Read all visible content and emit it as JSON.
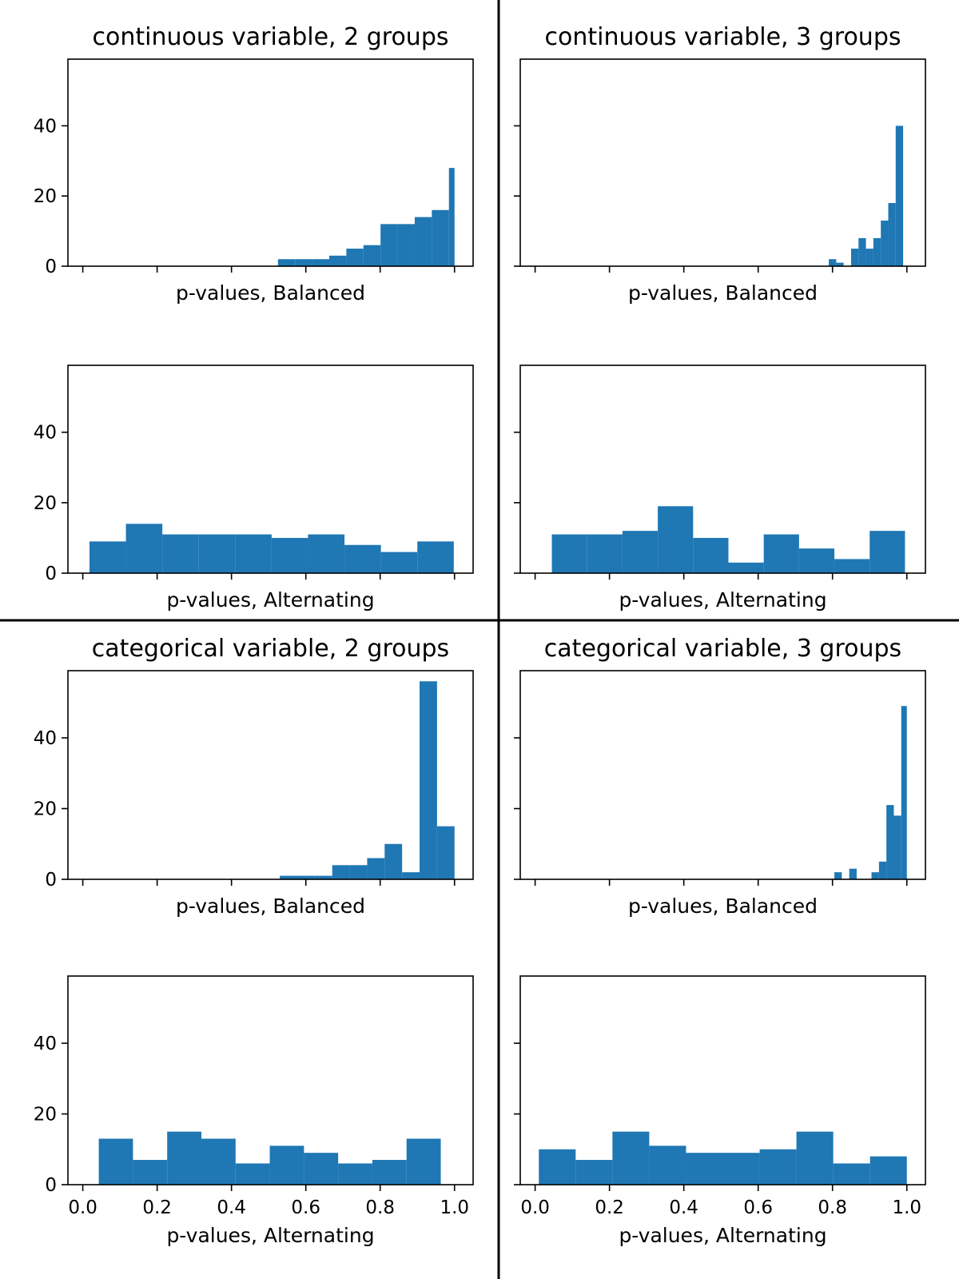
{
  "figure": {
    "bar_color": "#1f77b4",
    "divider_color": "#000000",
    "sharey_ylim": [
      0,
      59
    ],
    "y_ticks": [
      0,
      20,
      40
    ],
    "x_ticks": [
      0.0,
      0.2,
      0.4,
      0.6,
      0.8,
      1.0
    ],
    "x_tick_labels": [
      "0.0",
      "0.2",
      "0.4",
      "0.6",
      "0.8",
      "1.0"
    ]
  },
  "chart_data": [
    {
      "type": "bar",
      "title": "continuous variable, 2 groups",
      "xlabel": "p-values, Balanced",
      "xlim": [
        -0.04,
        1.05
      ],
      "ylim": [
        0,
        59
      ],
      "bins": [
        [
          0.525,
          0.571,
          2
        ],
        [
          0.571,
          0.617,
          2
        ],
        [
          0.617,
          0.663,
          2
        ],
        [
          0.663,
          0.709,
          3
        ],
        [
          0.709,
          0.755,
          5
        ],
        [
          0.755,
          0.801,
          6
        ],
        [
          0.801,
          0.847,
          12
        ],
        [
          0.847,
          0.893,
          12
        ],
        [
          0.893,
          0.939,
          14
        ],
        [
          0.939,
          0.985,
          16
        ],
        [
          0.985,
          1.0,
          28
        ]
      ]
    },
    {
      "type": "bar",
      "title": "continuous variable, 3 groups",
      "xlabel": "p-values, Balanced",
      "xlim": [
        -0.04,
        1.05
      ],
      "ylim": [
        0,
        59
      ],
      "bins": [
        [
          0.79,
          0.81,
          2
        ],
        [
          0.81,
          0.83,
          1
        ],
        [
          0.85,
          0.87,
          5
        ],
        [
          0.87,
          0.89,
          8
        ],
        [
          0.89,
          0.91,
          5
        ],
        [
          0.91,
          0.93,
          8
        ],
        [
          0.93,
          0.95,
          13
        ],
        [
          0.95,
          0.97,
          18
        ],
        [
          0.97,
          0.99,
          40
        ]
      ]
    },
    {
      "type": "bar",
      "title": "",
      "xlabel": "p-values, Alternating",
      "xlim": [
        -0.04,
        1.05
      ],
      "ylim": [
        0,
        59
      ],
      "bins": [
        [
          0.018,
          0.116,
          9
        ],
        [
          0.116,
          0.214,
          14
        ],
        [
          0.214,
          0.312,
          11
        ],
        [
          0.312,
          0.41,
          11
        ],
        [
          0.41,
          0.508,
          11
        ],
        [
          0.508,
          0.606,
          10
        ],
        [
          0.606,
          0.704,
          11
        ],
        [
          0.704,
          0.802,
          8
        ],
        [
          0.802,
          0.9,
          6
        ],
        [
          0.9,
          0.998,
          9
        ]
      ]
    },
    {
      "type": "bar",
      "title": "",
      "xlabel": "p-values, Alternating",
      "xlim": [
        -0.04,
        1.05
      ],
      "ylim": [
        0,
        59
      ],
      "bins": [
        [
          0.045,
          0.14,
          11
        ],
        [
          0.14,
          0.235,
          11
        ],
        [
          0.235,
          0.33,
          12
        ],
        [
          0.33,
          0.425,
          19
        ],
        [
          0.425,
          0.52,
          10
        ],
        [
          0.52,
          0.615,
          3
        ],
        [
          0.615,
          0.71,
          11
        ],
        [
          0.71,
          0.805,
          7
        ],
        [
          0.805,
          0.9,
          4
        ],
        [
          0.9,
          0.995,
          12
        ]
      ]
    },
    {
      "type": "bar",
      "title": "categorical variable, 2 groups",
      "xlabel": "p-values, Balanced",
      "xlim": [
        -0.04,
        1.05
      ],
      "ylim": [
        0,
        59
      ],
      "bins": [
        [
          0.53,
          0.577,
          1
        ],
        [
          0.577,
          0.624,
          1
        ],
        [
          0.624,
          0.671,
          1
        ],
        [
          0.671,
          0.718,
          4
        ],
        [
          0.718,
          0.765,
          4
        ],
        [
          0.765,
          0.812,
          6
        ],
        [
          0.812,
          0.859,
          10
        ],
        [
          0.859,
          0.906,
          2
        ],
        [
          0.906,
          0.953,
          56
        ],
        [
          0.953,
          1.0,
          15
        ]
      ]
    },
    {
      "type": "bar",
      "title": "categorical variable, 3 groups",
      "xlabel": "p-values, Balanced",
      "xlim": [
        -0.04,
        1.05
      ],
      "ylim": [
        0,
        59
      ],
      "bins": [
        [
          0.805,
          0.825,
          2
        ],
        [
          0.845,
          0.865,
          3
        ],
        [
          0.905,
          0.925,
          2
        ],
        [
          0.925,
          0.945,
          5
        ],
        [
          0.945,
          0.965,
          21
        ],
        [
          0.965,
          0.985,
          18
        ],
        [
          0.985,
          1.0,
          49
        ]
      ]
    },
    {
      "type": "bar",
      "title": "",
      "xlabel": "p-values, Alternating",
      "xlim": [
        -0.04,
        1.05
      ],
      "ylim": [
        0,
        59
      ],
      "x_tick_labels_visible": true,
      "bins": [
        [
          0.043,
          0.135,
          13
        ],
        [
          0.135,
          0.227,
          7
        ],
        [
          0.227,
          0.319,
          15
        ],
        [
          0.319,
          0.411,
          13
        ],
        [
          0.411,
          0.503,
          6
        ],
        [
          0.503,
          0.595,
          11
        ],
        [
          0.595,
          0.687,
          9
        ],
        [
          0.687,
          0.779,
          6
        ],
        [
          0.779,
          0.871,
          7
        ],
        [
          0.871,
          0.963,
          13
        ]
      ]
    },
    {
      "type": "bar",
      "title": "",
      "xlabel": "p-values, Alternating",
      "xlim": [
        -0.04,
        1.05
      ],
      "ylim": [
        0,
        59
      ],
      "x_tick_labels_visible": true,
      "bins": [
        [
          0.01,
          0.109,
          10
        ],
        [
          0.109,
          0.208,
          7
        ],
        [
          0.208,
          0.307,
          15
        ],
        [
          0.307,
          0.406,
          11
        ],
        [
          0.406,
          0.505,
          9
        ],
        [
          0.505,
          0.604,
          9
        ],
        [
          0.604,
          0.703,
          10
        ],
        [
          0.703,
          0.802,
          15
        ],
        [
          0.802,
          0.901,
          6
        ],
        [
          0.901,
          1.0,
          8
        ]
      ]
    }
  ]
}
